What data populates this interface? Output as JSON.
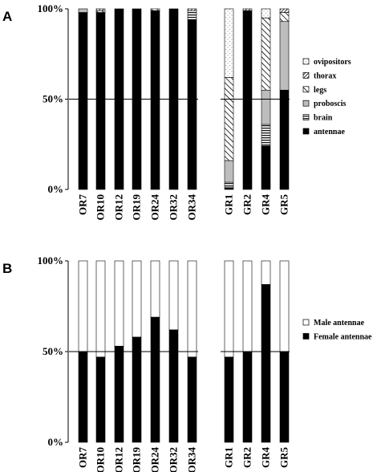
{
  "chart_data": [
    {
      "panel": "A",
      "type": "bar",
      "stacked": true,
      "ylim": [
        0,
        100
      ],
      "yticks": [
        "0%",
        "50%",
        "100%"
      ],
      "groups": [
        [
          "OR7",
          "OR10",
          "OR12",
          "OR19",
          "OR24",
          "OR32",
          "OR34"
        ],
        [
          "GR1",
          "GR2",
          "GR4",
          "GR5"
        ]
      ],
      "categories": [
        "OR7",
        "OR10",
        "OR12",
        "OR19",
        "OR24",
        "OR32",
        "OR34",
        "GR1",
        "GR2",
        "GR4",
        "GR5"
      ],
      "series": [
        {
          "name": "antennae",
          "pattern": "solid-black",
          "values": [
            98,
            98,
            100,
            100,
            99,
            100,
            94,
            1,
            99,
            24,
            55
          ]
        },
        {
          "name": "brain",
          "pattern": "horizontal-lines",
          "values": [
            0,
            0,
            0,
            0,
            0,
            0,
            5,
            3,
            0,
            12,
            0
          ]
        },
        {
          "name": "proboscis",
          "pattern": "grey",
          "values": [
            2,
            0,
            0,
            0,
            0,
            0,
            0,
            12,
            0,
            19,
            38
          ]
        },
        {
          "name": "legs",
          "pattern": "diagonal-lines",
          "values": [
            0,
            1,
            0,
            0,
            1,
            0,
            0,
            46,
            0,
            40,
            5
          ]
        },
        {
          "name": "thorax",
          "pattern": "dense-diagonal",
          "values": [
            0,
            1,
            0,
            0,
            0,
            0,
            1,
            0,
            1,
            0,
            2
          ]
        },
        {
          "name": "ovipositors",
          "pattern": "dots",
          "values": [
            0,
            0,
            0,
            0,
            0,
            0,
            0,
            38,
            0,
            5,
            0
          ]
        }
      ],
      "reference_line": 50,
      "legend": [
        "ovipositors",
        "thorax",
        "legs",
        "proboscis",
        "brain",
        "antennae"
      ],
      "legend_position": "right"
    },
    {
      "panel": "B",
      "type": "bar",
      "stacked": true,
      "ylim": [
        0,
        100
      ],
      "yticks": [
        "0%",
        "50%",
        "100%"
      ],
      "groups": [
        [
          "OR7",
          "OR10",
          "OR12",
          "OR19",
          "OR24",
          "OR32",
          "OR34"
        ],
        [
          "GR1",
          "GR2",
          "GR4",
          "GR5"
        ]
      ],
      "categories": [
        "OR7",
        "OR10",
        "OR12",
        "OR19",
        "OR24",
        "OR32",
        "OR34",
        "GR1",
        "GR2",
        "GR4",
        "GR5"
      ],
      "series": [
        {
          "name": "Female antennae",
          "pattern": "solid-black",
          "values": [
            50,
            47,
            53,
            58,
            69,
            62,
            47,
            47,
            50,
            87,
            50
          ]
        },
        {
          "name": "Male antennae",
          "pattern": "white",
          "values": [
            50,
            53,
            47,
            42,
            31,
            38,
            53,
            53,
            50,
            13,
            50
          ]
        }
      ],
      "reference_line": 50,
      "legend": [
        "Male antennae",
        "Female antennae"
      ],
      "legend_position": "right"
    }
  ]
}
